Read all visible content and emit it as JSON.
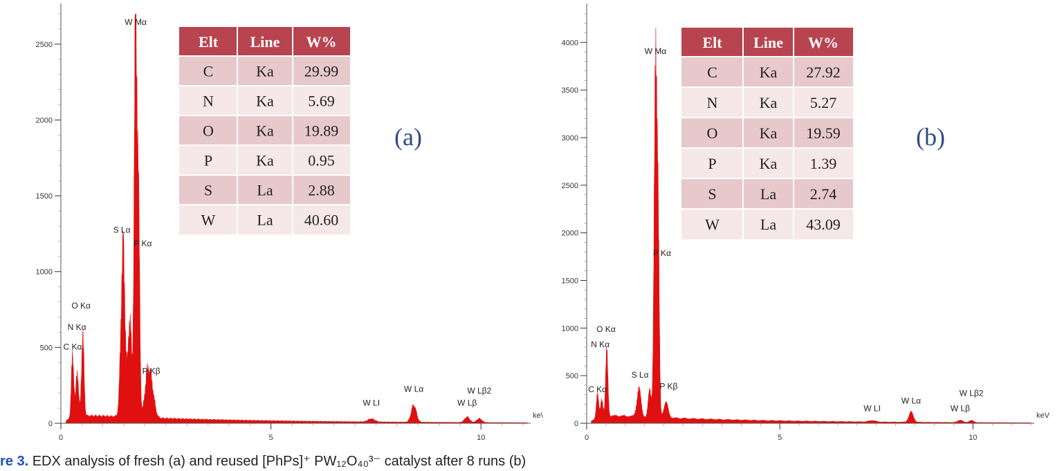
{
  "figure": {
    "caption": {
      "prefix": "re 3.",
      "text": "EDX analysis of fresh (a) and reused [PhPs]⁺ PW₁₂O₄₀³⁻ catalyst after 8 runs (b)"
    },
    "colors": {
      "spectrum": "#e01010",
      "table_header": "#b84450",
      "row_light": "#f6e7e8",
      "row_dark": "#e7c9cc",
      "panel_label": "#2e4a8a"
    }
  },
  "chart_data": [
    {
      "type": "area",
      "panel_label": "(a)",
      "xunit": "ke\\",
      "xlim": [
        0,
        11.1
      ],
      "ylim": [
        0,
        2700
      ],
      "xticks": [
        0,
        5,
        10
      ],
      "yticks": [
        500,
        1000,
        1500,
        2000,
        2500
      ],
      "yticks_labeled": [
        "0",
        "500",
        "1000",
        "1500",
        "2000",
        "2500"
      ],
      "grid": false,
      "background": 45,
      "peaks": [
        {
          "x": 0.28,
          "y": 400,
          "w": 0.03
        },
        {
          "x": 0.39,
          "y": 300,
          "w": 0.03
        },
        {
          "x": 0.52,
          "y": 520,
          "w": 0.03
        },
        {
          "x": 1.48,
          "y": 1090,
          "w": 0.05
        },
        {
          "x": 1.64,
          "y": 640,
          "w": 0.04
        },
        {
          "x": 1.78,
          "y": 2590,
          "w": 0.035
        },
        {
          "x": 1.85,
          "y": 1130,
          "w": 0.03
        },
        {
          "x": 2.05,
          "y": 220,
          "w": 0.06
        },
        {
          "x": 2.15,
          "y": 210,
          "w": 0.07
        },
        {
          "x": 7.39,
          "y": 20,
          "w": 0.08
        },
        {
          "x": 8.4,
          "y": 110,
          "w": 0.06
        },
        {
          "x": 9.67,
          "y": 35,
          "w": 0.06
        },
        {
          "x": 9.96,
          "y": 25,
          "w": 0.06
        }
      ],
      "peak_labels": [
        {
          "text": "W Mα",
          "x": 1.78,
          "y": 2590
        },
        {
          "text": "S Lα",
          "x": 1.45,
          "y": 1220
        },
        {
          "text": "P Kα",
          "x": 1.95,
          "y": 1130
        },
        {
          "text": "O Kα",
          "x": 0.48,
          "y": 720
        },
        {
          "text": "N Kα",
          "x": 0.38,
          "y": 580
        },
        {
          "text": "C Kα",
          "x": 0.28,
          "y": 450
        },
        {
          "text": "P Kβ",
          "x": 2.15,
          "y": 290
        },
        {
          "text": "W LI",
          "x": 7.39,
          "y": 80
        },
        {
          "text": "W Lα",
          "x": 8.4,
          "y": 170
        },
        {
          "text": "W Lβ",
          "x": 9.67,
          "y": 80
        },
        {
          "text": "W Lβ2",
          "x": 9.96,
          "y": 160
        }
      ],
      "table": {
        "headers": [
          "Elt",
          "Line",
          "W%"
        ],
        "rows": [
          [
            "C",
            "Ka",
            "29.99"
          ],
          [
            "N",
            "Ka",
            "5.69"
          ],
          [
            "O",
            "Ka",
            "19.89"
          ],
          [
            "P",
            "Ka",
            "0.95"
          ],
          [
            "S",
            "La",
            "2.88"
          ],
          [
            "W",
            "La",
            "40.60"
          ]
        ]
      }
    },
    {
      "type": "area",
      "panel_label": "(b)",
      "xunit": "keV",
      "xlim": [
        0,
        11.5
      ],
      "ylim": [
        0,
        4300
      ],
      "xticks": [
        0,
        5,
        10
      ],
      "yticks": [
        500,
        1000,
        1500,
        2000,
        2500,
        3000,
        3500,
        4000
      ],
      "yticks_labeled": [
        "0",
        "500",
        "1000",
        "1500",
        "2000",
        "2500",
        "3000",
        "3500",
        "4000"
      ],
      "grid": false,
      "background": 70,
      "peaks": [
        {
          "x": 0.28,
          "y": 230,
          "w": 0.03
        },
        {
          "x": 0.39,
          "y": 200,
          "w": 0.03
        },
        {
          "x": 0.52,
          "y": 640,
          "w": 0.03
        },
        {
          "x": 1.35,
          "y": 300,
          "w": 0.05
        },
        {
          "x": 1.63,
          "y": 260,
          "w": 0.04
        },
        {
          "x": 1.78,
          "y": 3820,
          "w": 0.035
        },
        {
          "x": 1.85,
          "y": 1720,
          "w": 0.03
        },
        {
          "x": 2.05,
          "y": 150,
          "w": 0.06
        },
        {
          "x": 7.39,
          "y": 15,
          "w": 0.08
        },
        {
          "x": 8.4,
          "y": 100,
          "w": 0.06
        },
        {
          "x": 9.67,
          "y": 25,
          "w": 0.06
        },
        {
          "x": 9.96,
          "y": 20,
          "w": 0.06
        }
      ],
      "peak_labels": [
        {
          "text": "W Mα",
          "x": 1.78,
          "y": 3820
        },
        {
          "text": "S Lα",
          "x": 1.38,
          "y": 420
        },
        {
          "text": "P Kα",
          "x": 1.95,
          "y": 1700
        },
        {
          "text": "O Kα",
          "x": 0.5,
          "y": 900
        },
        {
          "text": "N Kα",
          "x": 0.35,
          "y": 740
        },
        {
          "text": "C Kα",
          "x": 0.28,
          "y": 270
        },
        {
          "text": "P Kβ",
          "x": 2.12,
          "y": 300
        },
        {
          "text": "W LI",
          "x": 7.39,
          "y": 70
        },
        {
          "text": "W Lα",
          "x": 8.4,
          "y": 150
        },
        {
          "text": "W Lβ",
          "x": 9.67,
          "y": 70
        },
        {
          "text": "W Lβ2",
          "x": 9.96,
          "y": 230
        }
      ],
      "table": {
        "headers": [
          "Elt",
          "Line",
          "W%"
        ],
        "rows": [
          [
            "C",
            "Ka",
            "27.92"
          ],
          [
            "N",
            "Ka",
            "5.27"
          ],
          [
            "O",
            "Ka",
            "19.59"
          ],
          [
            "P",
            "Ka",
            "1.39"
          ],
          [
            "S",
            "La",
            "2.74"
          ],
          [
            "W",
            "La",
            "43.09"
          ]
        ]
      }
    }
  ]
}
